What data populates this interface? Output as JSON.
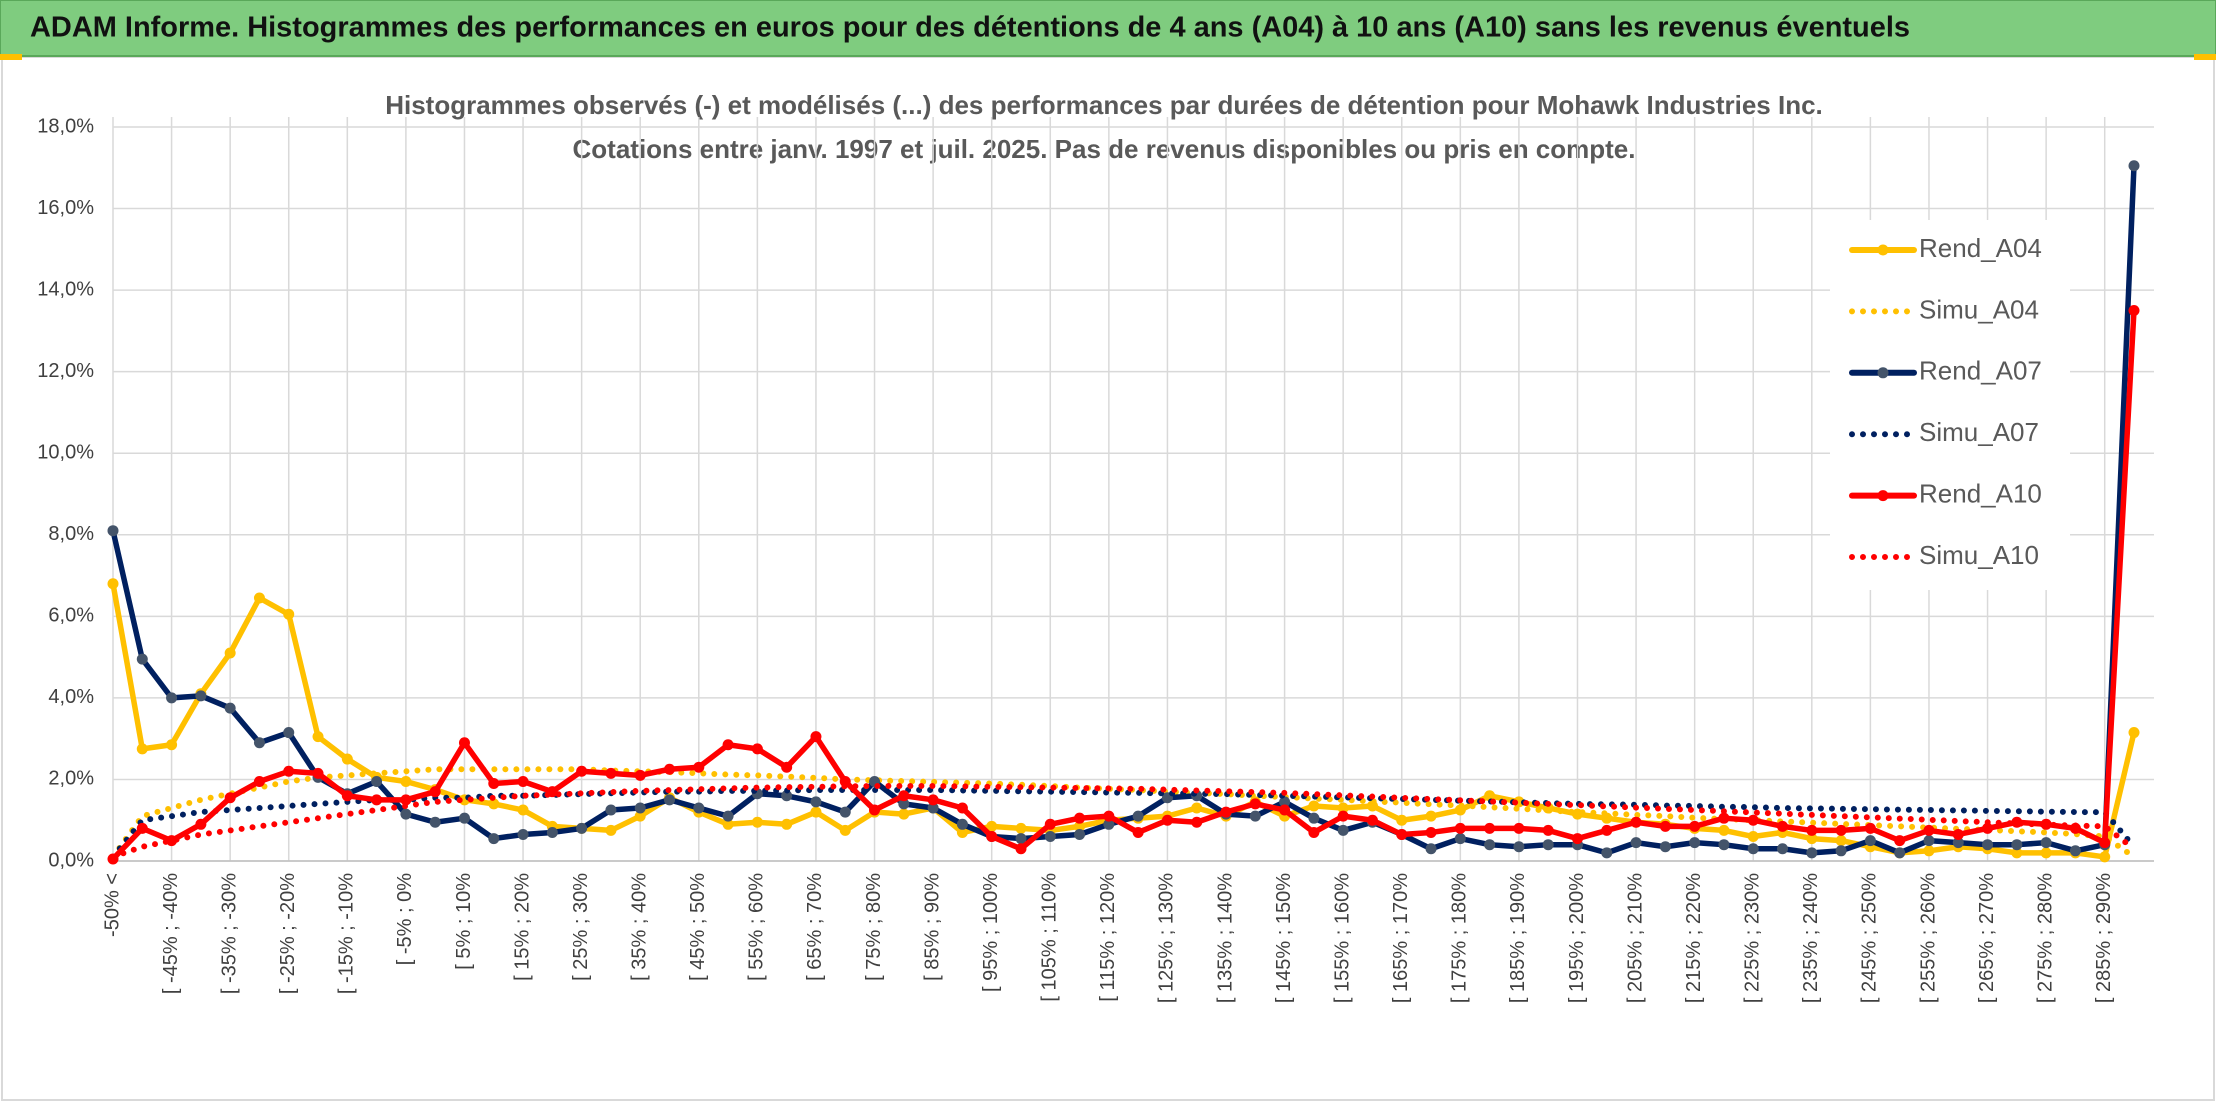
{
  "chart_data": {
    "type": "line",
    "title": "ADAM Informe. Histogrammes des performances en euros pour des détentions de 4 ans (A04) à 10 ans (A10) sans les revenus éventuels",
    "subtitle": [
      "Histogrammes observés (-) et modélisés (...) des performances par durées de détention pour Mohawk Industries Inc.",
      "Cotations entre janv. 1997 et juil. 2025. Pas de revenus disponibles ou pris en compte."
    ],
    "categories": [
      "-50% <",
      null,
      "[ -45% ; -40%",
      null,
      "[ -35% ; -30%",
      null,
      "[ -25% ; -20%",
      null,
      "[ -15% ; -10%",
      null,
      "[ -5% ; 0%",
      null,
      "[ 5% ; 10%",
      null,
      "[ 15% ; 20%",
      null,
      "[ 25% ; 30%",
      null,
      "[ 35% ; 40%",
      null,
      "[ 45% ; 50%",
      null,
      "[ 55% ; 60%",
      null,
      "[ 65% ; 70%",
      null,
      "[ 75% ; 80%",
      null,
      "[ 85% ; 90%",
      null,
      "[ 95% ; 100%",
      null,
      "[ 105% ; 110%",
      null,
      "[ 115% ; 120%",
      null,
      "[ 125% ; 130%",
      null,
      "[ 135% ; 140%",
      null,
      "[ 145% ; 150%",
      null,
      "[ 155% ; 160%",
      null,
      "[ 165% ; 170%",
      null,
      "[ 175% ; 180%",
      null,
      "[ 185% ; 190%",
      null,
      "[ 195% ; 200%",
      null,
      "[ 205% ; 210%",
      null,
      "[ 215% ; 220%",
      null,
      "[ 225% ; 230%",
      null,
      "[ 235% ; 240%",
      null,
      "[ 245% ; 250%",
      null,
      "[ 255% ; 260%",
      null,
      "[ 265% ; 270%",
      null,
      "[ 275% ; 280%",
      null,
      "[ 285% ; 290%",
      null
    ],
    "series": [
      {
        "name": "Rend_A04",
        "color": "#ffc000",
        "marker_color": "#ffc000",
        "style": "solid",
        "markers": true,
        "values": [
          6.8,
          2.75,
          2.85,
          4.1,
          5.1,
          6.45,
          6.05,
          3.05,
          2.5,
          2.05,
          1.95,
          1.75,
          1.5,
          1.4,
          1.25,
          0.85,
          0.8,
          0.75,
          1.1,
          1.55,
          1.2,
          0.9,
          0.95,
          0.9,
          1.2,
          0.75,
          1.2,
          1.15,
          1.3,
          0.7,
          0.85,
          0.8,
          0.75,
          0.85,
          1.0,
          1.05,
          1.1,
          1.3,
          1.1,
          1.45,
          1.1,
          1.35,
          1.3,
          1.35,
          1.0,
          1.1,
          1.25,
          1.6,
          1.45,
          1.3,
          1.15,
          1.05,
          0.95,
          0.9,
          0.8,
          0.75,
          0.6,
          0.7,
          0.55,
          0.5,
          0.35,
          0.2,
          0.25,
          0.35,
          0.3,
          0.2,
          0.2,
          0.2,
          0.1,
          3.15
        ]
      },
      {
        "name": "Simu_A04",
        "color": "#ffc000",
        "style": "dotted",
        "markers": false,
        "values": [
          0.1,
          1.1,
          1.3,
          1.5,
          1.65,
          1.8,
          1.95,
          2.05,
          2.1,
          2.15,
          2.2,
          2.25,
          2.25,
          2.25,
          2.25,
          2.25,
          2.25,
          2.22,
          2.2,
          2.18,
          2.15,
          2.12,
          2.1,
          2.07,
          2.04,
          2.0,
          1.98,
          1.96,
          1.94,
          1.92,
          1.9,
          1.87,
          1.84,
          1.8,
          1.77,
          1.74,
          1.7,
          1.67,
          1.64,
          1.6,
          1.57,
          1.53,
          1.5,
          1.46,
          1.43,
          1.39,
          1.36,
          1.32,
          1.28,
          1.24,
          1.2,
          1.17,
          1.13,
          1.1,
          1.06,
          1.03,
          1.0,
          0.97,
          0.94,
          0.91,
          0.88,
          0.85,
          0.82,
          0.79,
          0.76,
          0.73,
          0.7,
          0.66,
          0.6,
          0.1
        ]
      },
      {
        "name": "Rend_A07",
        "color": "#002060",
        "marker_color": "#44546a",
        "style": "solid",
        "markers": true,
        "values": [
          8.1,
          4.95,
          4.0,
          4.05,
          3.75,
          2.9,
          3.15,
          2.05,
          1.65,
          1.95,
          1.15,
          0.95,
          1.05,
          0.55,
          0.65,
          0.7,
          0.8,
          1.25,
          1.3,
          1.5,
          1.3,
          1.1,
          1.65,
          1.6,
          1.45,
          1.2,
          1.95,
          1.4,
          1.3,
          0.9,
          0.6,
          0.55,
          0.6,
          0.65,
          0.9,
          1.1,
          1.55,
          1.6,
          1.15,
          1.1,
          1.45,
          1.05,
          0.75,
          0.95,
          0.65,
          0.3,
          0.55,
          0.4,
          0.35,
          0.4,
          0.4,
          0.2,
          0.45,
          0.35,
          0.45,
          0.4,
          0.3,
          0.3,
          0.2,
          0.25,
          0.5,
          0.2,
          0.5,
          0.45,
          0.4,
          0.4,
          0.45,
          0.25,
          0.4,
          17.05
        ]
      },
      {
        "name": "Simu_A07",
        "color": "#002060",
        "style": "dotted",
        "markers": false,
        "values": [
          0.1,
          1.0,
          1.1,
          1.2,
          1.25,
          1.3,
          1.35,
          1.4,
          1.45,
          1.5,
          1.5,
          1.55,
          1.55,
          1.6,
          1.6,
          1.62,
          1.64,
          1.66,
          1.68,
          1.7,
          1.7,
          1.72,
          1.72,
          1.73,
          1.74,
          1.74,
          1.74,
          1.74,
          1.74,
          1.73,
          1.72,
          1.71,
          1.7,
          1.69,
          1.68,
          1.67,
          1.66,
          1.65,
          1.64,
          1.62,
          1.6,
          1.58,
          1.56,
          1.54,
          1.52,
          1.5,
          1.48,
          1.46,
          1.44,
          1.42,
          1.4,
          1.39,
          1.38,
          1.36,
          1.35,
          1.33,
          1.32,
          1.3,
          1.29,
          1.28,
          1.27,
          1.26,
          1.25,
          1.24,
          1.23,
          1.22,
          1.21,
          1.2,
          1.2,
          0.35
        ]
      },
      {
        "name": "Rend_A10",
        "color": "#ff0000",
        "marker_color": "#ff0000",
        "style": "solid",
        "markers": true,
        "values": [
          0.05,
          0.8,
          0.5,
          0.9,
          1.55,
          1.95,
          2.2,
          2.15,
          1.6,
          1.5,
          1.5,
          1.7,
          2.9,
          1.9,
          1.95,
          1.7,
          2.2,
          2.15,
          2.1,
          2.25,
          2.3,
          2.85,
          2.75,
          2.3,
          3.05,
          1.95,
          1.25,
          1.6,
          1.5,
          1.3,
          0.6,
          0.3,
          0.9,
          1.05,
          1.1,
          0.7,
          1.0,
          0.95,
          1.2,
          1.4,
          1.25,
          0.7,
          1.1,
          1.0,
          0.65,
          0.7,
          0.8,
          0.8,
          0.8,
          0.75,
          0.55,
          0.75,
          0.95,
          0.85,
          0.85,
          1.05,
          1.0,
          0.85,
          0.75,
          0.75,
          0.8,
          0.5,
          0.75,
          0.65,
          0.8,
          0.95,
          0.9,
          0.8,
          0.45,
          13.5
        ]
      },
      {
        "name": "Simu_A10",
        "color": "#ff0000",
        "style": "dotted",
        "markers": false,
        "values": [
          0.1,
          0.35,
          0.5,
          0.65,
          0.75,
          0.85,
          0.95,
          1.05,
          1.15,
          1.25,
          1.35,
          1.45,
          1.5,
          1.55,
          1.6,
          1.63,
          1.66,
          1.69,
          1.72,
          1.74,
          1.76,
          1.78,
          1.8,
          1.81,
          1.82,
          1.83,
          1.84,
          1.84,
          1.84,
          1.83,
          1.82,
          1.81,
          1.8,
          1.79,
          1.78,
          1.77,
          1.75,
          1.73,
          1.71,
          1.69,
          1.67,
          1.64,
          1.61,
          1.58,
          1.55,
          1.52,
          1.49,
          1.46,
          1.43,
          1.4,
          1.37,
          1.34,
          1.31,
          1.28,
          1.25,
          1.22,
          1.19,
          1.16,
          1.13,
          1.1,
          1.07,
          1.04,
          1.01,
          0.98,
          0.95,
          0.92,
          0.89,
          0.87,
          0.85,
          0.3
        ]
      }
    ],
    "ylim": [
      0,
      18
    ],
    "yticks": [
      {
        "value": 0,
        "label": "0,0%"
      },
      {
        "value": 2,
        "label": "2,0%"
      },
      {
        "value": 4,
        "label": "4,0%"
      },
      {
        "value": 6,
        "label": "6,0%"
      },
      {
        "value": 8,
        "label": "8,0%"
      },
      {
        "value": 10,
        "label": "10,0%"
      },
      {
        "value": 12,
        "label": "12,0%"
      },
      {
        "value": 14,
        "label": "14,0%"
      },
      {
        "value": 16,
        "label": "16,0%"
      },
      {
        "value": 18,
        "label": "18,0%"
      }
    ],
    "grid": true,
    "legend": "right"
  }
}
